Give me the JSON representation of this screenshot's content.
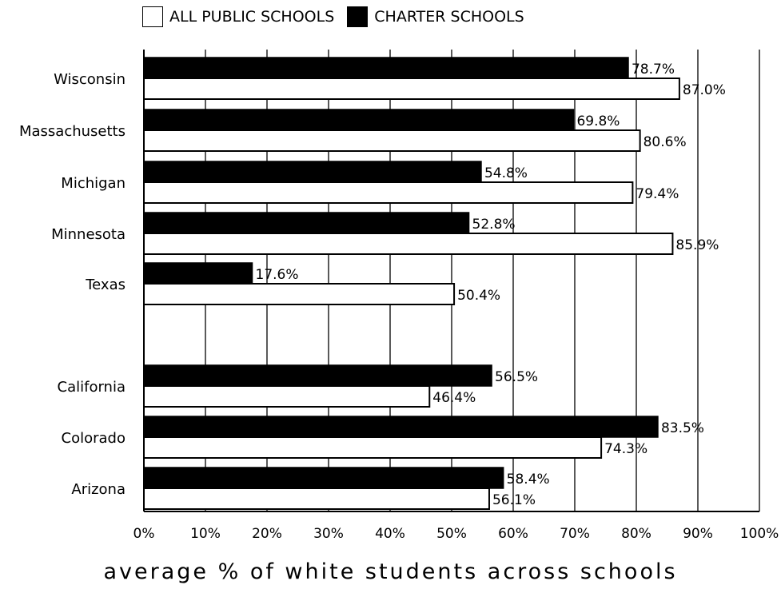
{
  "chart_data": {
    "type": "bar",
    "orientation": "horizontal",
    "title": "",
    "xlabel": "average % of white students across schools",
    "ylabel": "",
    "xlim": [
      0,
      100
    ],
    "x_ticks": [
      "0%",
      "10%",
      "20%",
      "30%",
      "40%",
      "50%",
      "60%",
      "70%",
      "80%",
      "90%",
      "100%"
    ],
    "categories": [
      "Wisconsin",
      "Massachusetts",
      "Michigan",
      "Minnesota",
      "Texas",
      "California",
      "Colorado",
      "Arizona"
    ],
    "series": [
      {
        "name": "CHARTER SCHOOLS",
        "color": "#000000",
        "values": [
          78.7,
          69.8,
          54.8,
          52.8,
          17.6,
          56.5,
          83.5,
          58.4
        ],
        "labels": [
          "78.7%",
          "69.8%",
          "54.8%",
          "52.8%",
          "17.6%",
          "56.5%",
          "83.5%",
          "58.4%"
        ]
      },
      {
        "name": "ALL PUBLIC SCHOOLS",
        "color": "#ffffff",
        "values": [
          87.0,
          80.6,
          79.4,
          85.9,
          50.4,
          46.4,
          74.3,
          56.1
        ],
        "labels": [
          "87.0%",
          "80.6%",
          "79.4%",
          "85.9%",
          "50.4%",
          "46.4%",
          "74.3%",
          "56.1%"
        ]
      }
    ],
    "legend": [
      "ALL PUBLIC SCHOOLS",
      "CHARTER SCHOOLS"
    ],
    "legend_position": "top",
    "grid": true
  }
}
